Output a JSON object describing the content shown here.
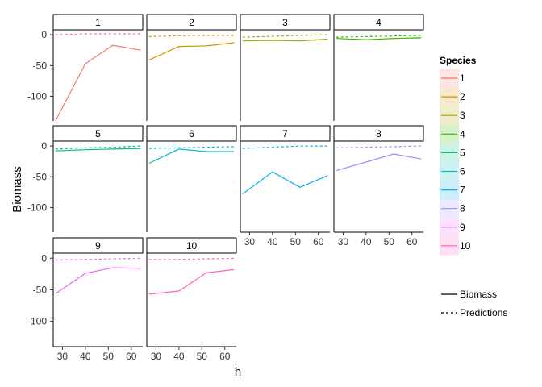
{
  "chart_data": {
    "type": "line",
    "title": "",
    "xlabel": "h",
    "ylabel": "Biomass",
    "x": [
      27,
      40,
      52,
      64
    ],
    "x_ticks": [
      30,
      40,
      50,
      60
    ],
    "y_ticks": [
      0,
      -50,
      -100
    ],
    "xlim": [
      26,
      65
    ],
    "ylim": [
      -140,
      8
    ],
    "grid": false,
    "facet_rows": 3,
    "facet_cols": 4,
    "panels": [
      {
        "label": "1",
        "color": "#F8766D",
        "biomass": [
          -140,
          -47,
          -17,
          -25
        ],
        "predictions": [
          0,
          1.5,
          1.5,
          1.5
        ]
      },
      {
        "label": "2",
        "color": "#D89000",
        "biomass": [
          -41,
          -19,
          -18,
          -13
        ],
        "predictions": [
          -3,
          -1.5,
          -1,
          -1
        ]
      },
      {
        "label": "3",
        "color": "#A3A500",
        "biomass": [
          -10,
          -9,
          -10,
          -7
        ],
        "predictions": [
          -4,
          -2.5,
          -1,
          0
        ]
      },
      {
        "label": "4",
        "color": "#39B600",
        "biomass": [
          -6,
          -8,
          -6,
          -5
        ],
        "predictions": [
          -4,
          -3,
          -2,
          -1
        ]
      },
      {
        "label": "5",
        "color": "#00BF7D",
        "biomass": [
          -8,
          -6,
          -5,
          -4
        ],
        "predictions": [
          -5,
          -3,
          -2,
          0
        ]
      },
      {
        "label": "6",
        "color": "#00BFC4",
        "biomass": [
          -28,
          -5,
          -9,
          -9
        ],
        "predictions": [
          -4,
          -3,
          -2,
          -1
        ]
      },
      {
        "label": "7",
        "color": "#00B0F6",
        "biomass": [
          -78,
          -42,
          -67,
          -48
        ],
        "predictions": [
          -4,
          -2,
          0,
          0
        ]
      },
      {
        "label": "8",
        "color": "#9590FF",
        "biomass": [
          -40,
          -26,
          -13,
          -21
        ],
        "predictions": [
          -3,
          -2,
          -1,
          0
        ]
      },
      {
        "label": "9",
        "color": "#E76BF3",
        "biomass": [
          -56,
          -24,
          -15,
          -16
        ],
        "predictions": [
          -3,
          -2,
          -1,
          0
        ]
      },
      {
        "label": "10",
        "color": "#FF62BC",
        "biomass": [
          -57,
          -52,
          -23,
          -18
        ],
        "predictions": [
          -2,
          -2,
          -1,
          0
        ]
      }
    ],
    "legend": {
      "position": "right",
      "title": "Species",
      "species": [
        "1",
        "2",
        "3",
        "4",
        "5",
        "6",
        "7",
        "8",
        "9",
        "10"
      ],
      "linetypes": [
        {
          "label": "Biomass",
          "style": "solid"
        },
        {
          "label": "Predictions",
          "style": "dashed"
        }
      ]
    }
  }
}
